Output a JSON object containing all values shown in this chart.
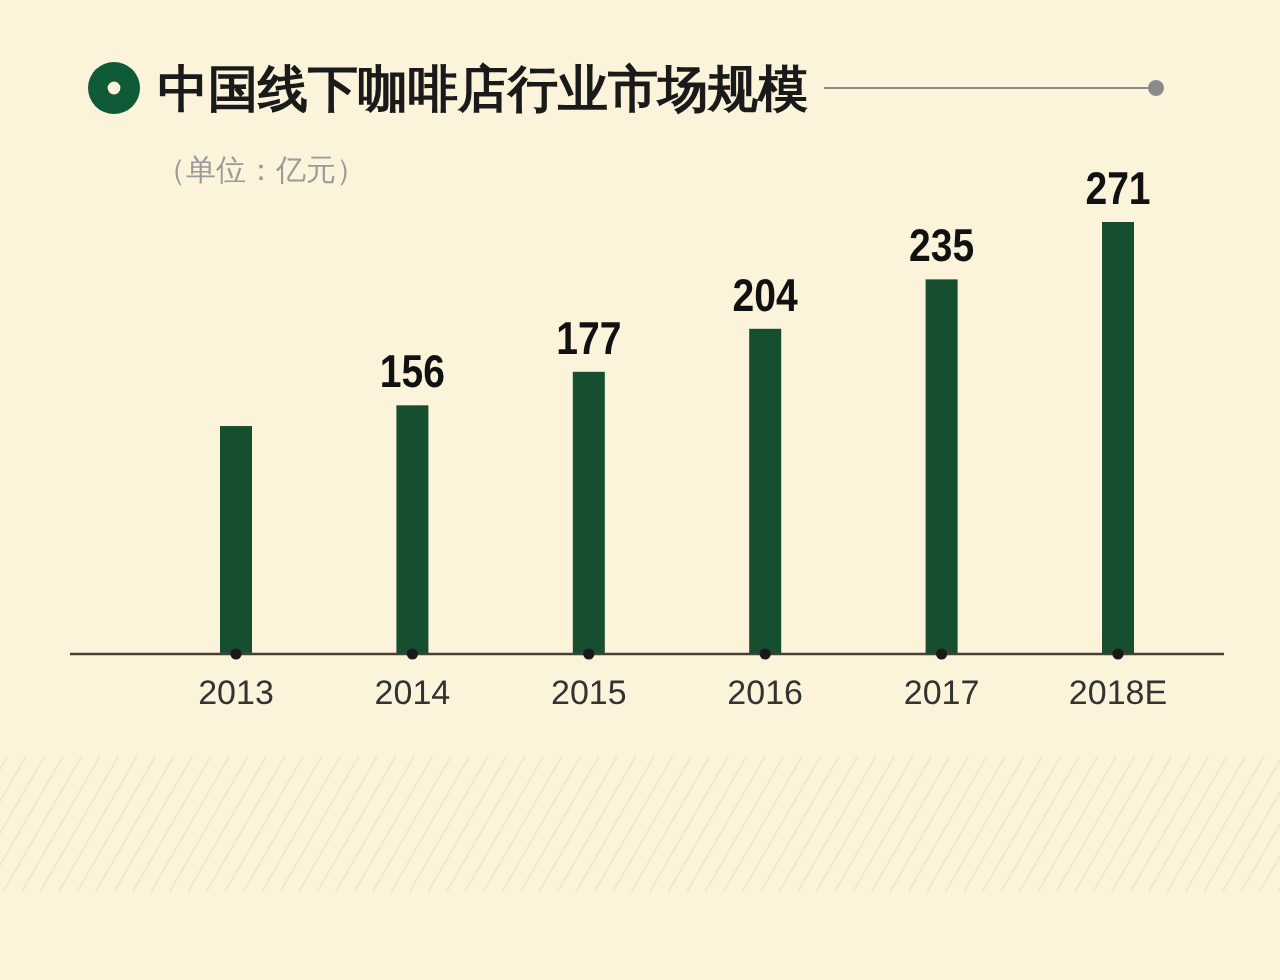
{
  "chart_data": {
    "type": "bar",
    "title": "中国线下咖啡店行业市场规模",
    "subtitle": "（单位：亿元）",
    "categories": [
      "2013",
      "2014",
      "2015",
      "2016",
      "2017",
      "2018E"
    ],
    "values": [
      143,
      156,
      177,
      204,
      235,
      271
    ],
    "color": "#154f30",
    "value_labels": [
      null,
      "156",
      "177",
      "204",
      "235",
      "271"
    ]
  }
}
